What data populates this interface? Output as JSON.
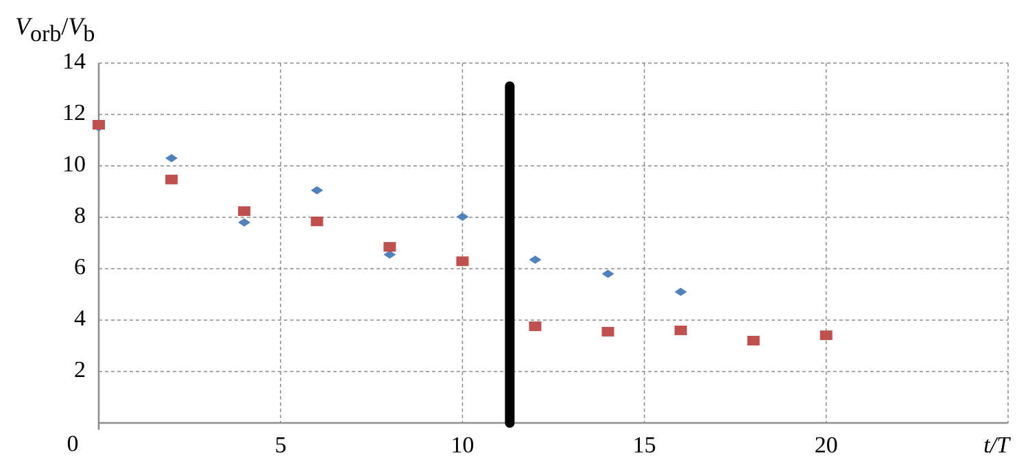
{
  "chart_data": {
    "type": "scatter",
    "ylabel_parts": [
      "V",
      "orb",
      "/",
      "V",
      "b"
    ],
    "xlabel": "t/T",
    "xlim": [
      0,
      25
    ],
    "ylim": [
      0,
      14
    ],
    "xticks": [
      5,
      10,
      15,
      20
    ],
    "yticks": [
      0,
      2,
      4,
      6,
      8,
      10,
      12,
      14
    ],
    "grid": true,
    "series": [
      {
        "color": "#4f81bd",
        "marker": "diamond",
        "x": [
          0,
          2,
          4,
          6,
          8,
          10,
          12,
          14,
          16
        ],
        "values": [
          11.5,
          10.3,
          7.8,
          9.05,
          6.55,
          8.02,
          6.35,
          5.8,
          5.1
        ]
      },
      {
        "color": "#c0504d",
        "marker": "square",
        "x": [
          0,
          2,
          4,
          6,
          8,
          10,
          12,
          14,
          16,
          18,
          20
        ],
        "values": [
          11.6,
          9.47,
          8.24,
          7.84,
          6.85,
          6.29,
          3.76,
          3.55,
          3.6,
          3.2,
          3.41
        ]
      }
    ],
    "vline": {
      "x": 11.3,
      "y": [
        0,
        13.1
      ],
      "color": "#000000"
    }
  }
}
